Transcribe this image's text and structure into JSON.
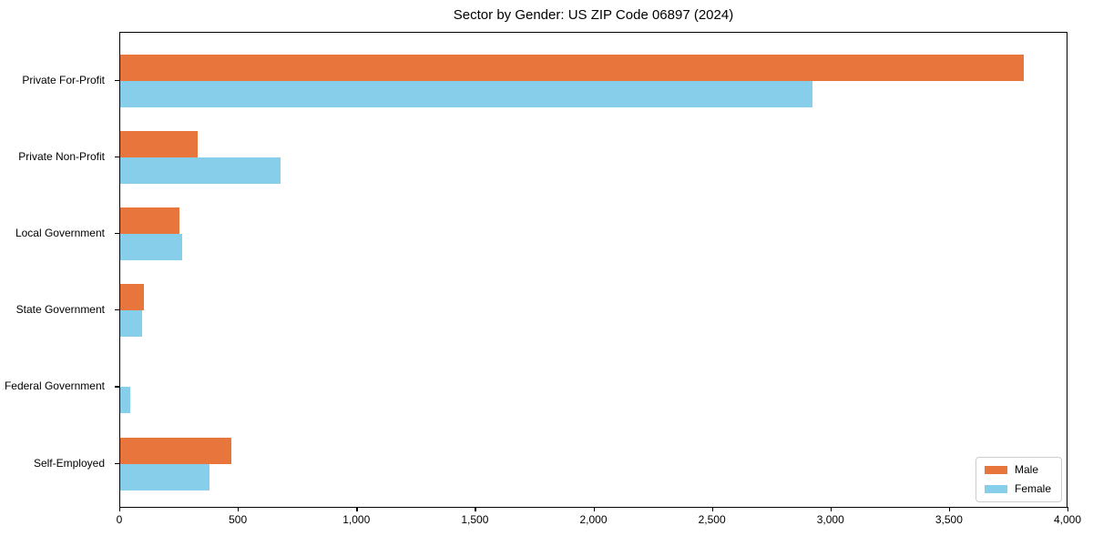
{
  "title": "Sector by Gender: US ZIP Code 06897 (2024)",
  "colors": {
    "male": "#e8763c",
    "female": "#87ceeb",
    "axis": "#000000",
    "legend_border": "#cccccc"
  },
  "legend": {
    "position": "lower-right",
    "items": [
      {
        "label": "Male",
        "color": "#e8763c"
      },
      {
        "label": "Female",
        "color": "#87ceeb"
      }
    ]
  },
  "chart_data": {
    "type": "bar",
    "orientation": "horizontal",
    "title": "Sector by Gender: US ZIP Code 06897 (2024)",
    "categories": [
      "Private For-Profit",
      "Private Non-Profit",
      "Local Government",
      "State Government",
      "Federal Government",
      "Self-Employed"
    ],
    "series": [
      {
        "name": "Male",
        "color": "#e8763c",
        "values": [
          3810,
          325,
          250,
          100,
          0,
          470
        ]
      },
      {
        "name": "Female",
        "color": "#87ceeb",
        "values": [
          2920,
          675,
          262,
          92,
          42,
          378
        ]
      }
    ],
    "xlabel": "",
    "ylabel": "",
    "xlim": [
      0,
      4000
    ],
    "xticks": [
      0,
      500,
      1000,
      1500,
      2000,
      2500,
      3000,
      3500,
      4000
    ],
    "xtick_labels": [
      "0",
      "500",
      "1,000",
      "1,500",
      "2,000",
      "2,500",
      "3,000",
      "3,500",
      "4,000"
    ],
    "legend_position": "lower right",
    "grid": false
  }
}
